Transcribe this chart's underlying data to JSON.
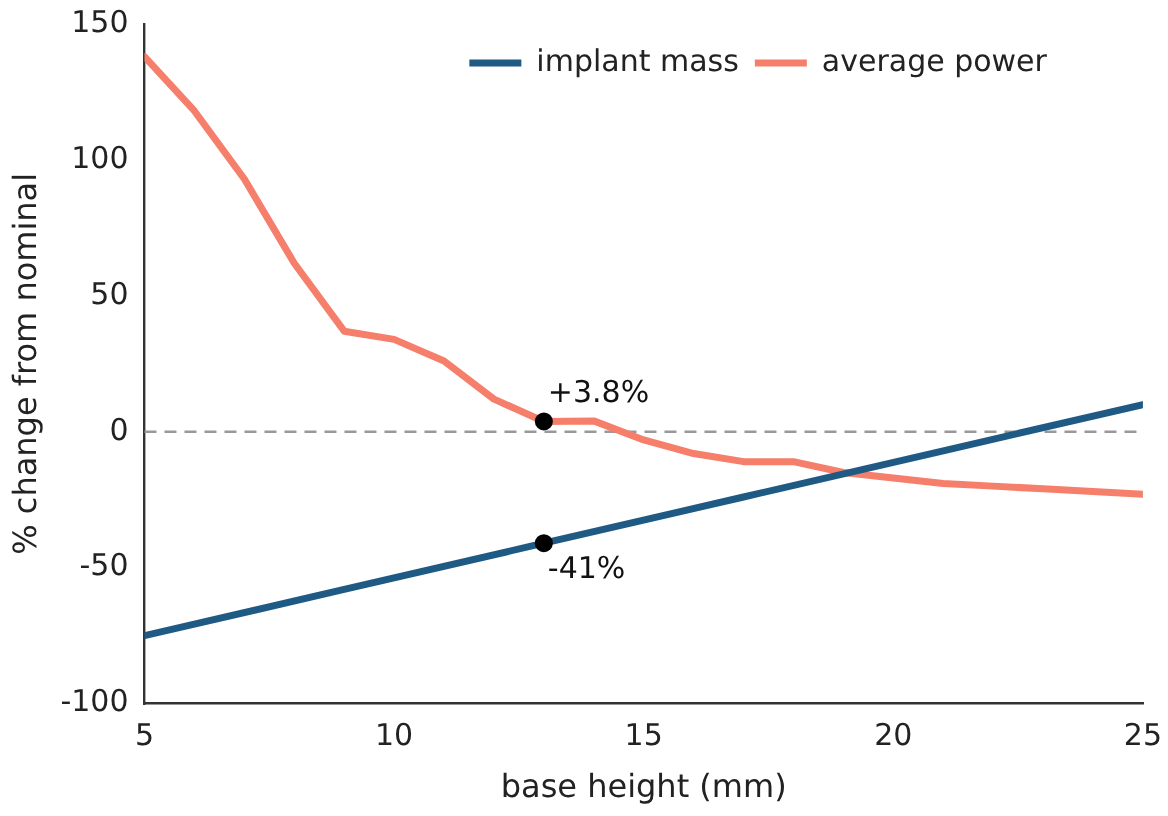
{
  "chart_data": {
    "type": "line",
    "xlabel": "base height (mm)",
    "ylabel": "% change from nominal",
    "xlim": [
      5,
      25
    ],
    "xticks": [
      5,
      10,
      15,
      20,
      25
    ],
    "ylim": [
      -100,
      150
    ],
    "yticks": [
      -100,
      -50,
      0,
      50,
      100,
      150
    ],
    "grid": false,
    "legend": "top right",
    "marker": "none",
    "line_style": "solid",
    "series": [
      {
        "name": "implant mass",
        "color": "#1f5a85",
        "x": [
          5,
          9,
          13,
          17,
          21,
          25
        ],
        "values": [
          -75,
          -58,
          -41,
          -24,
          -7,
          10
        ]
      },
      {
        "name": "average power",
        "color": "#f57f6b",
        "x": [
          5,
          6,
          7,
          8,
          9,
          10,
          11,
          12,
          13,
          14,
          15,
          16,
          17,
          18,
          19,
          20,
          21,
          22,
          23,
          24,
          25
        ],
        "values": [
          138,
          118,
          93,
          62,
          37,
          34,
          26,
          12,
          3.8,
          4,
          -3,
          -8,
          -11,
          -11,
          -15,
          -17,
          -19,
          -20,
          -21,
          -22,
          -23
        ]
      }
    ],
    "ref_lines": [
      {
        "axis": "y",
        "value": 0,
        "color": "#999999",
        "line_style": "dashed"
      }
    ],
    "annotations": [
      {
        "text": "+3.8%",
        "x": 13,
        "y": 3.8
      },
      {
        "text": "-41%",
        "x": 13,
        "y": -41
      }
    ]
  }
}
